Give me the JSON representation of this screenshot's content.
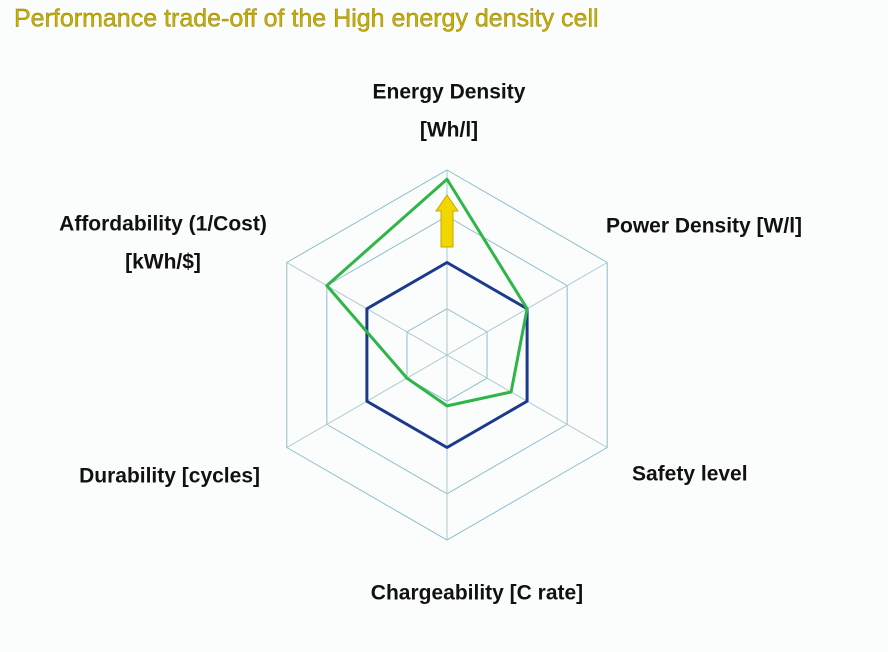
{
  "chart_data": {
    "type": "radar",
    "title": "Performance trade-off of the High energy density cell",
    "categories": [
      [
        "Energy Density",
        "[Wh/l]"
      ],
      [
        "Power Density [W/l]"
      ],
      [
        "Safety level"
      ],
      [
        "Chargeability [C rate]"
      ],
      [
        "Durability [cycles]"
      ],
      [
        "Affordability (1/Cost)",
        "[kWh/$]"
      ]
    ],
    "series": [
      {
        "color": "#1c3a8c",
        "values": [
          2,
          2,
          2,
          2,
          2,
          2
        ]
      },
      {
        "color": "#2fb548",
        "values": [
          3.8,
          2,
          1.6,
          1.1,
          1,
          3
        ]
      }
    ],
    "rlim": [
      0,
      4
    ],
    "rticks": [
      1,
      2,
      3,
      4
    ],
    "grid": true
  }
}
